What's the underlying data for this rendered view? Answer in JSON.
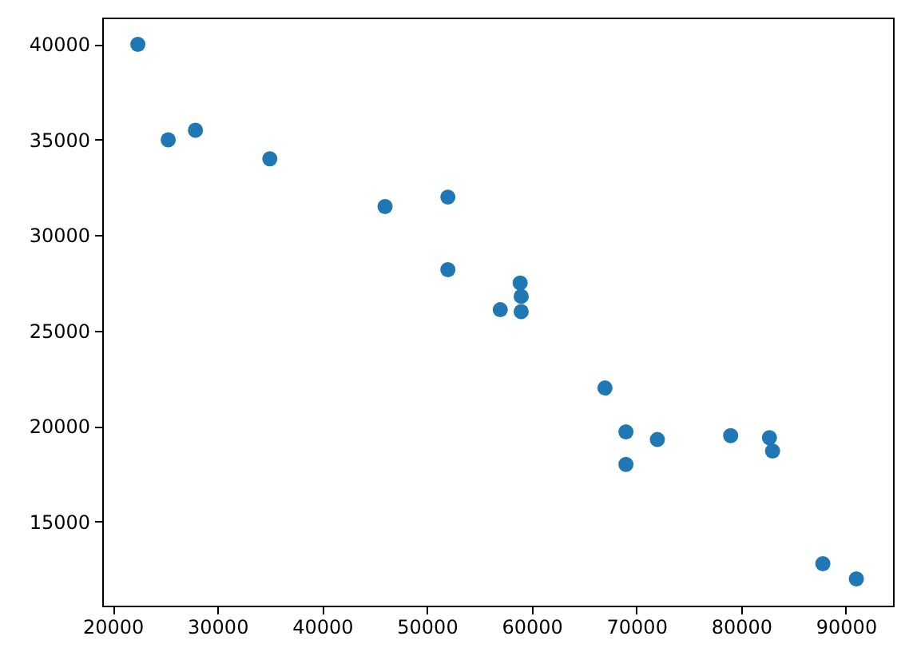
{
  "chart_data": {
    "type": "scatter",
    "x": [
      22400,
      25300,
      27900,
      35000,
      46000,
      52000,
      52000,
      58900,
      59000,
      59000,
      57000,
      67000,
      69000,
      69000,
      72000,
      79000,
      82700,
      83000,
      87800,
      91000
    ],
    "values": [
      40000,
      35000,
      35500,
      34000,
      31500,
      32000,
      28200,
      27500,
      26800,
      26000,
      26100,
      22000,
      19700,
      18000,
      19300,
      19500,
      19400,
      18700,
      12800,
      12000
    ],
    "color": "#1f77b4",
    "marker": "circle",
    "grid": false,
    "xlim": [
      19000,
      94500
    ],
    "ylim": [
      10600,
      41400
    ],
    "xticks": [
      20000,
      30000,
      40000,
      50000,
      60000,
      70000,
      80000,
      90000
    ],
    "yticks": [
      15000,
      20000,
      25000,
      30000,
      35000,
      40000
    ]
  }
}
